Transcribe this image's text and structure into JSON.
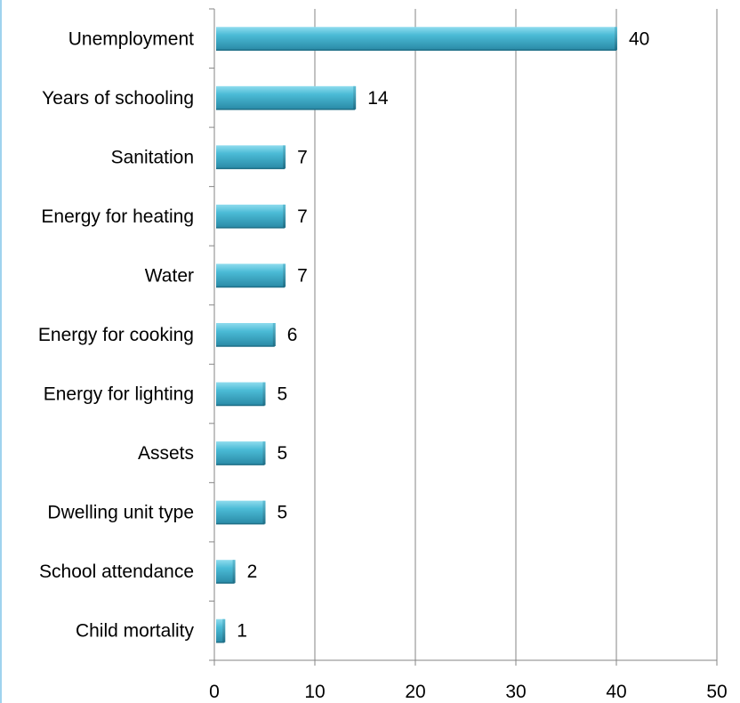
{
  "chart_data": {
    "type": "bar",
    "orientation": "horizontal",
    "categories": [
      "Unemployment",
      "Years of schooling",
      "Sanitation",
      "Energy for heating",
      "Water",
      "Energy for cooking",
      "Energy for lighting",
      "Assets",
      "Dwelling unit type",
      "School attendance",
      "Child mortality"
    ],
    "values": [
      40,
      14,
      7,
      7,
      7,
      6,
      5,
      5,
      5,
      2,
      1
    ],
    "data_labels": [
      "40",
      "14",
      "7",
      "7",
      "7",
      "6",
      "5",
      "5",
      "5",
      "2",
      "1"
    ],
    "xlim": [
      0,
      50
    ],
    "x_ticks": [
      "0",
      "10",
      "20",
      "30",
      "40",
      "50"
    ],
    "title": "",
    "xlabel": "",
    "ylabel": "",
    "grid": "vertical",
    "legend": "none",
    "bar_color": "#4bbbd6"
  }
}
